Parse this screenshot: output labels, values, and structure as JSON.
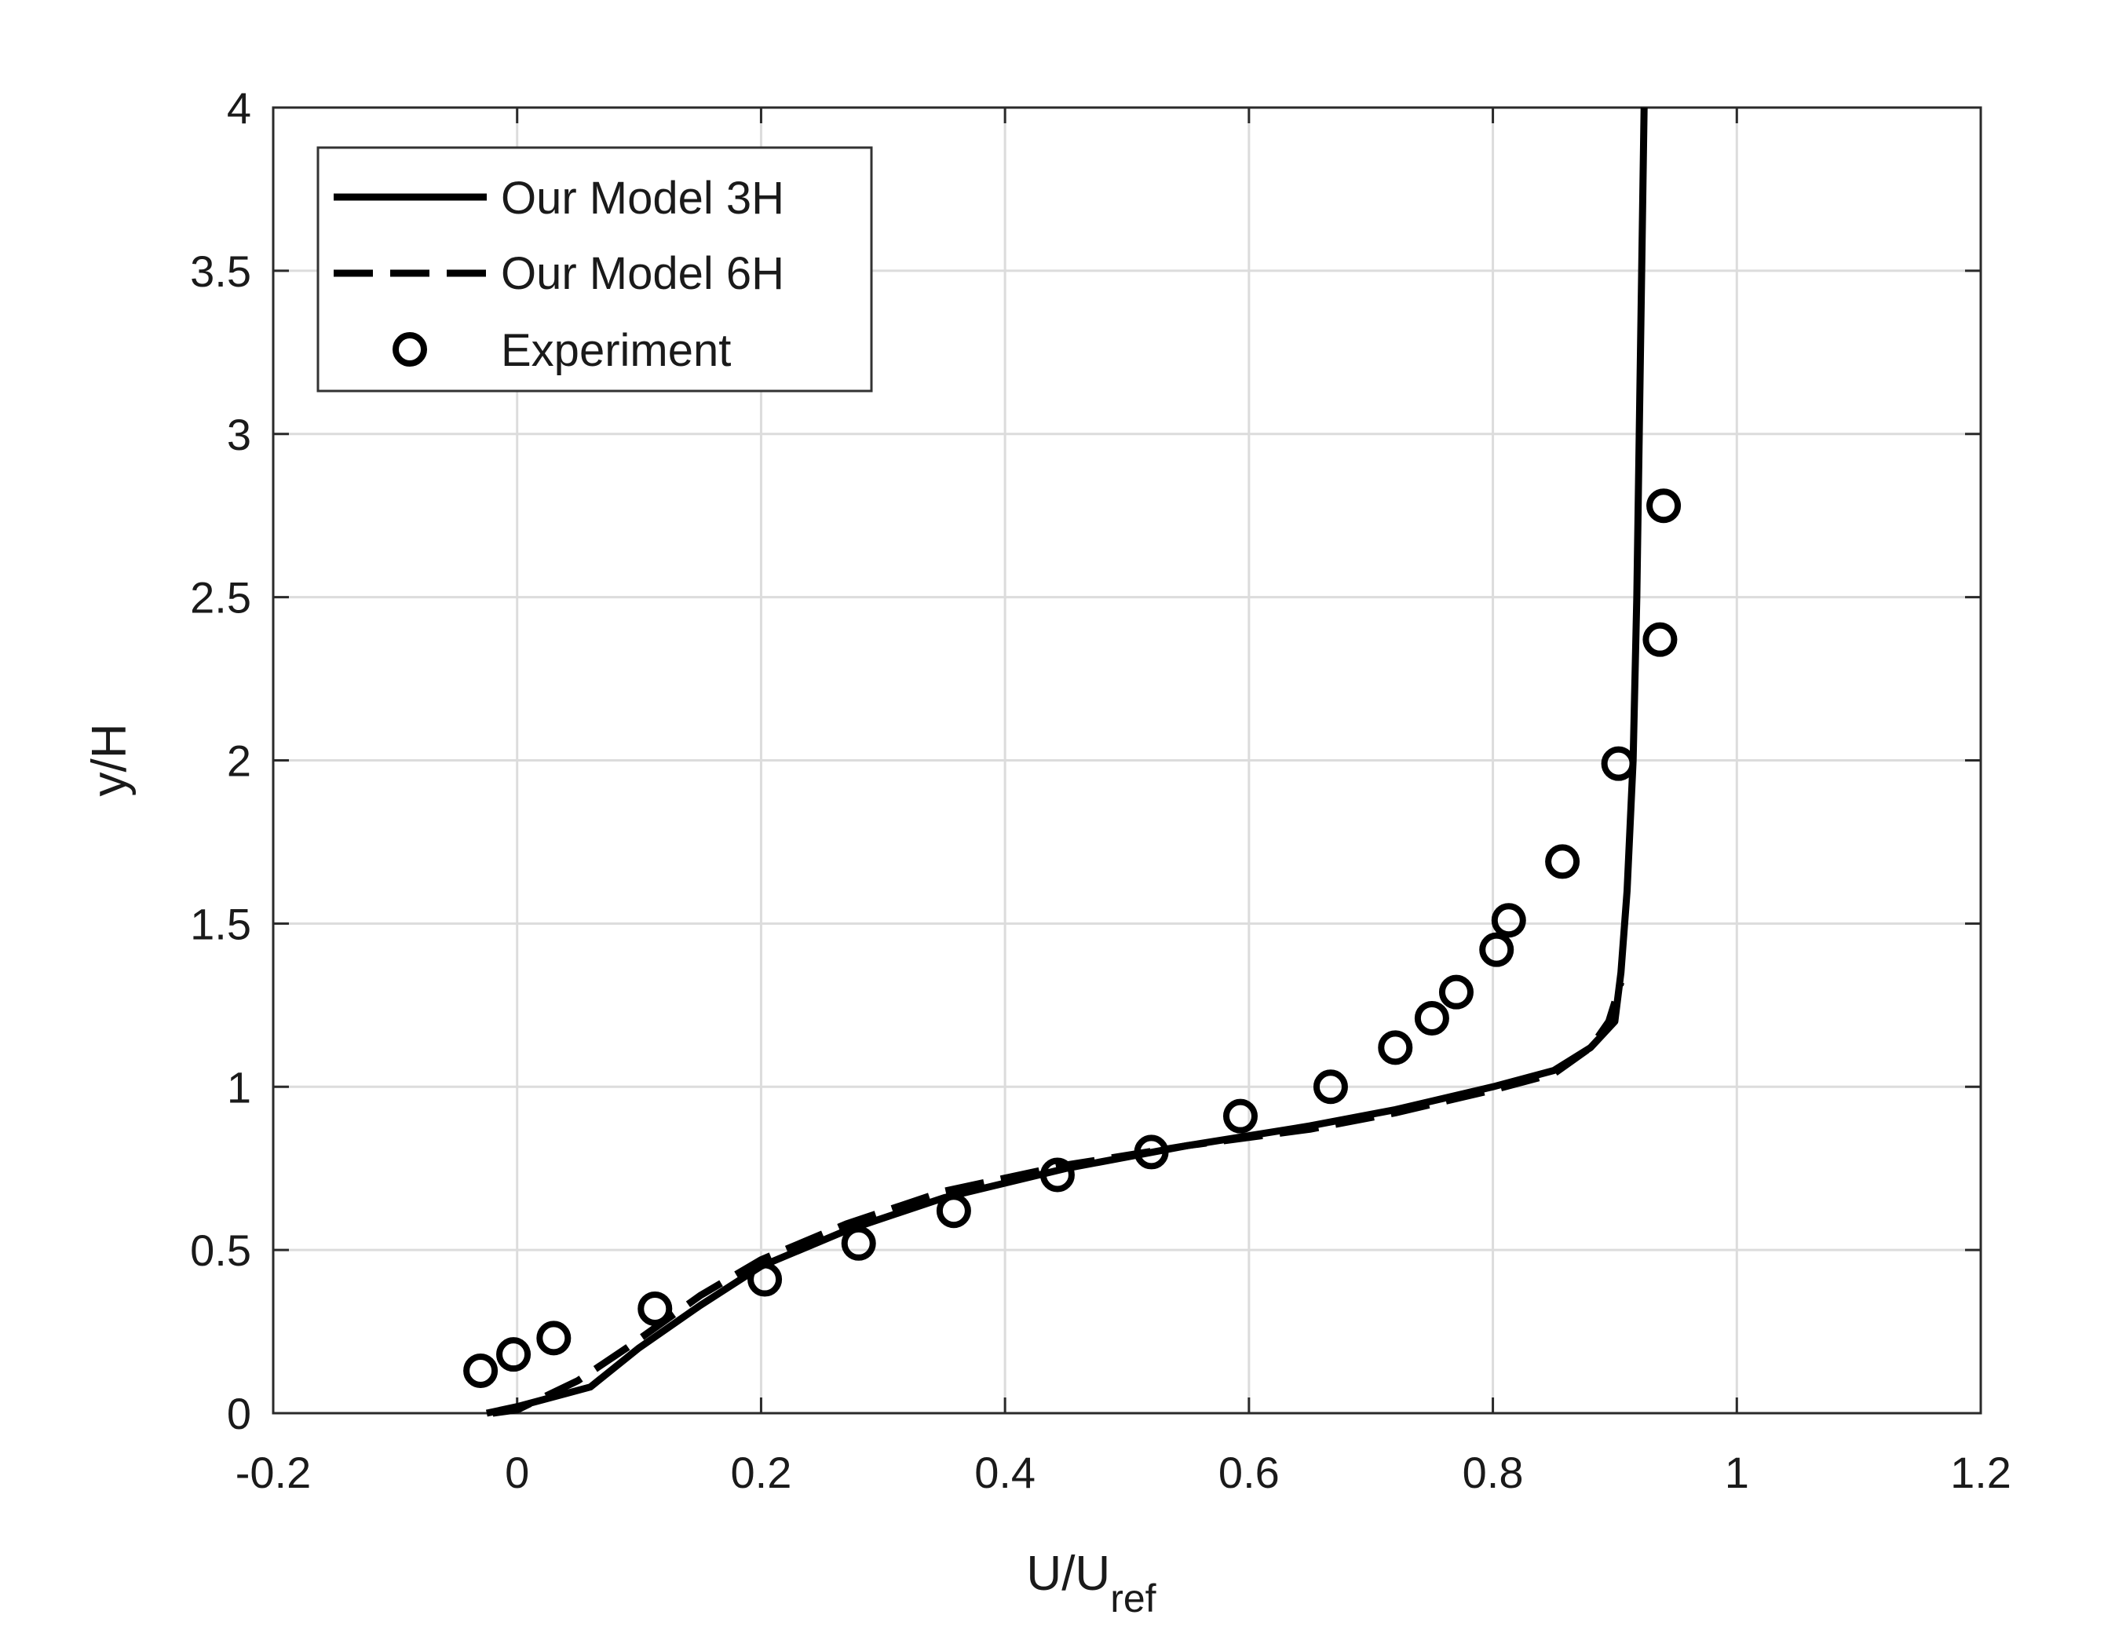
{
  "chart_data": {
    "type": "line",
    "title": "",
    "xlabel": "U/U",
    "xlabel_sub": "ref",
    "ylabel": "y/H",
    "xlim": [
      -0.2,
      1.2
    ],
    "ylim": [
      0,
      4
    ],
    "grid": true,
    "legend_position": "top-left",
    "x_ticks": [
      -0.2,
      0,
      0.2,
      0.4,
      0.6,
      0.8,
      1,
      1.2
    ],
    "x_tick_labels": [
      "-0.2",
      "0",
      "0.2",
      "0.4",
      "0.6",
      "0.8",
      "1",
      "1.2"
    ],
    "y_ticks": [
      0,
      0.5,
      1,
      1.5,
      2,
      2.5,
      3,
      3.5,
      4
    ],
    "y_tick_labels": [
      "0",
      "0.5",
      "1",
      "1.5",
      "2",
      "2.5",
      "3",
      "3.5",
      "4"
    ],
    "series": [
      {
        "name": "Our Model 3H",
        "style": "solid",
        "color": "#000000",
        "x": [
          -0.025,
          0.0,
          0.06,
          0.1,
          0.15,
          0.2,
          0.27,
          0.35,
          0.45,
          0.55,
          0.65,
          0.72,
          0.8,
          0.85,
          0.88,
          0.9,
          0.905,
          0.91,
          0.915,
          0.918,
          0.92,
          0.922,
          0.924
        ],
        "y": [
          0.0,
          0.02,
          0.08,
          0.2,
          0.33,
          0.45,
          0.56,
          0.66,
          0.75,
          0.82,
          0.88,
          0.93,
          1.0,
          1.05,
          1.12,
          1.2,
          1.35,
          1.6,
          2.0,
          2.5,
          3.0,
          3.5,
          4.0
        ]
      },
      {
        "name": "Our Model 6H",
        "style": "dashed",
        "color": "#000000",
        "x": [
          -0.02,
          0.0,
          0.05,
          0.09,
          0.15,
          0.2,
          0.27,
          0.35,
          0.45,
          0.55,
          0.65,
          0.72,
          0.8,
          0.85,
          0.88,
          0.895,
          0.905
        ],
        "y": [
          0.0,
          0.01,
          0.1,
          0.2,
          0.36,
          0.47,
          0.58,
          0.68,
          0.76,
          0.82,
          0.87,
          0.92,
          0.99,
          1.04,
          1.12,
          1.2,
          1.32
        ]
      },
      {
        "name": "Experiment",
        "style": "markers",
        "marker": "circle",
        "color": "#000000",
        "x": [
          -0.03,
          -0.003,
          0.03,
          0.113,
          0.203,
          0.28,
          0.358,
          0.443,
          0.52,
          0.593,
          0.667,
          0.72,
          0.75,
          0.77,
          0.803,
          0.813,
          0.857,
          0.903,
          0.937,
          0.94
        ],
        "y": [
          0.13,
          0.18,
          0.23,
          0.32,
          0.41,
          0.52,
          0.62,
          0.73,
          0.8,
          0.91,
          1.0,
          1.12,
          1.21,
          1.29,
          1.42,
          1.51,
          1.69,
          1.99,
          2.37,
          2.78
        ]
      }
    ]
  }
}
